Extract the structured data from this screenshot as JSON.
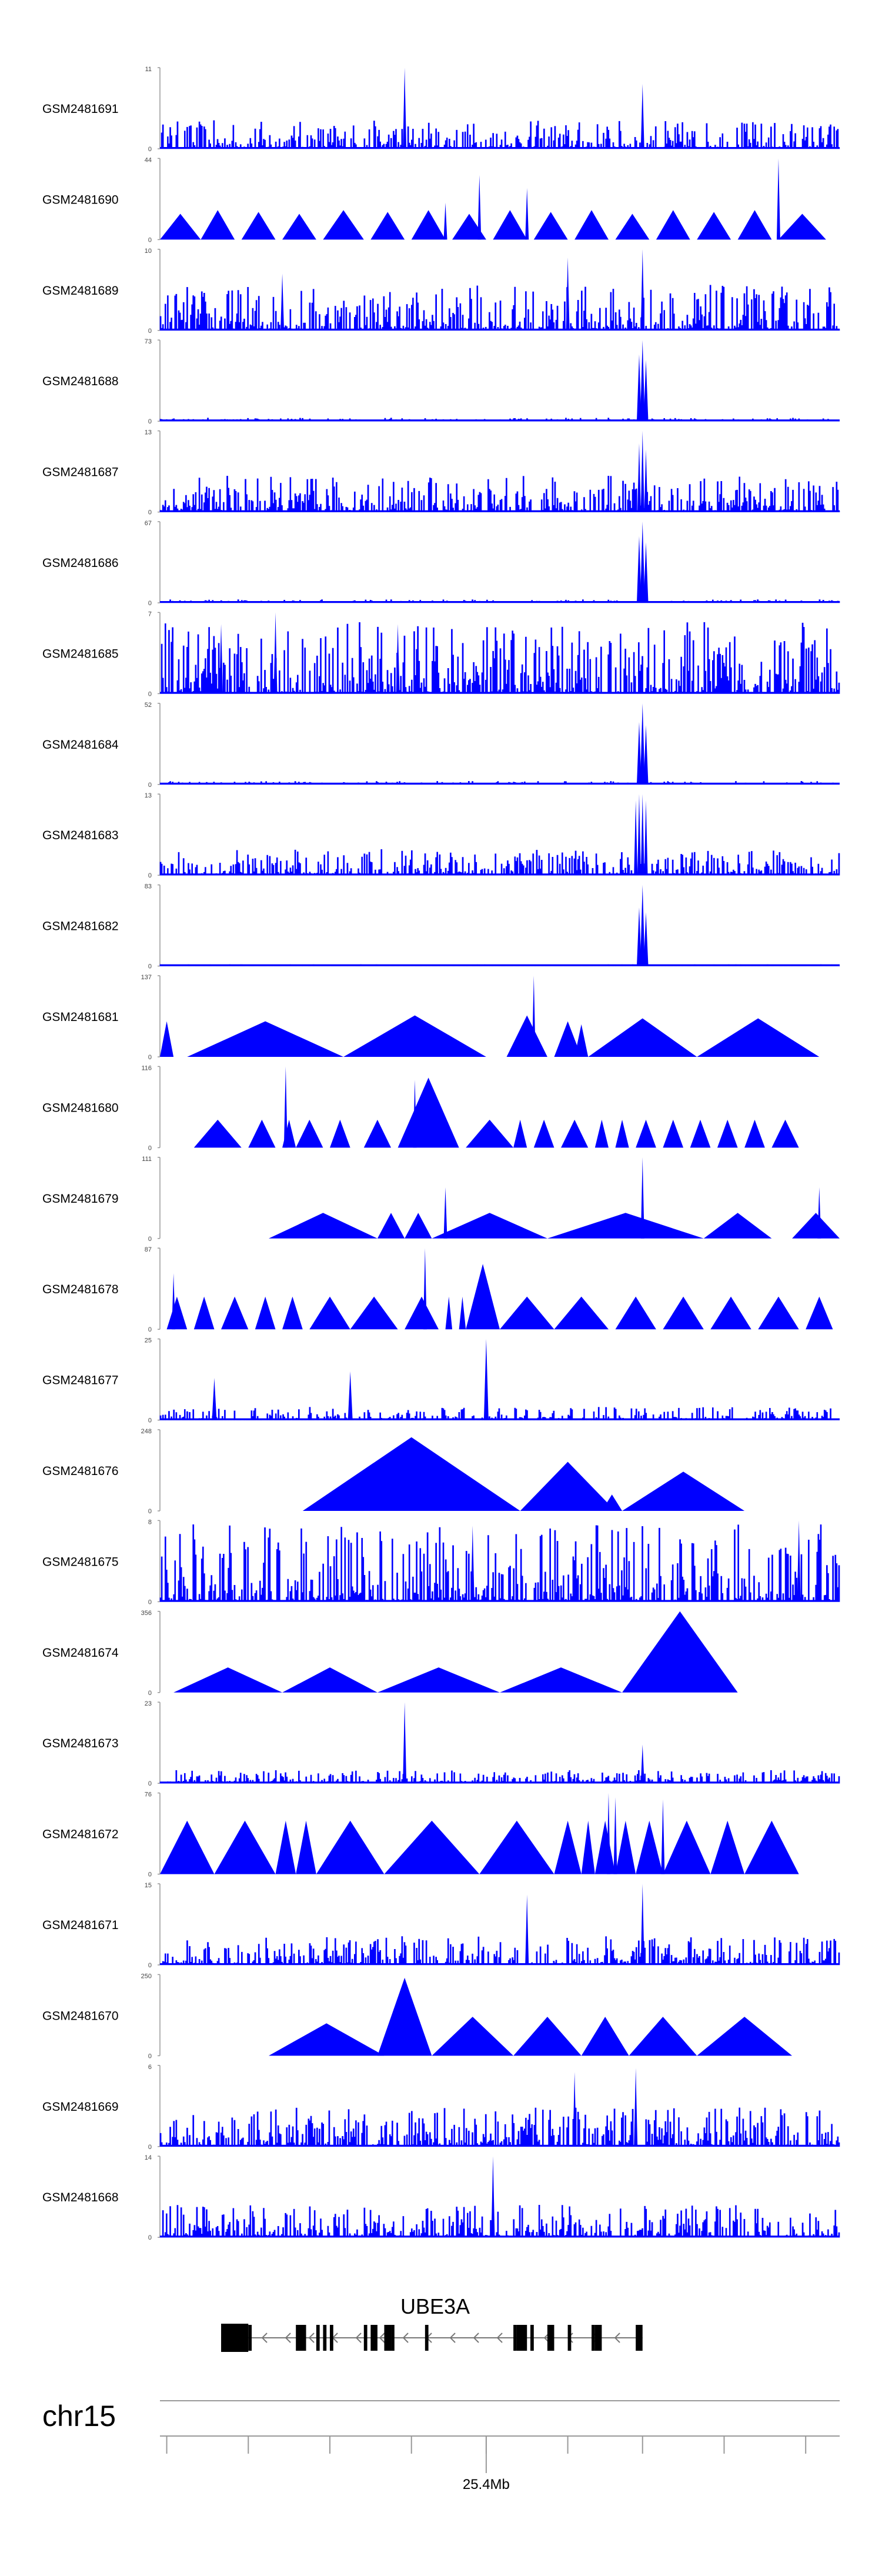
{
  "chart_data": {
    "type": "area",
    "title": "",
    "track_max_label_min": "0",
    "colors": {
      "track": "#0000ff",
      "axis": "#888888",
      "text": "#000000",
      "gene": "#000000"
    },
    "tracks": [
      {
        "name": "GSM2481691",
        "max": 11,
        "profile": "noise",
        "noise": 0.22,
        "peaks": [
          [
            0.36,
            11
          ],
          [
            0.71,
            8.8
          ]
        ]
      },
      {
        "name": "GSM2481690",
        "max": 44,
        "profile": "tri",
        "tri": [
          [
            0.0,
            0.06,
            14
          ],
          [
            0.06,
            0.11,
            16
          ],
          [
            0.12,
            0.17,
            15
          ],
          [
            0.18,
            0.23,
            14
          ],
          [
            0.24,
            0.3,
            16
          ],
          [
            0.31,
            0.36,
            15
          ],
          [
            0.37,
            0.42,
            16
          ],
          [
            0.43,
            0.48,
            14
          ],
          [
            0.49,
            0.54,
            16
          ],
          [
            0.55,
            0.6,
            15
          ],
          [
            0.61,
            0.66,
            16
          ],
          [
            0.67,
            0.72,
            14
          ],
          [
            0.73,
            0.78,
            16
          ],
          [
            0.79,
            0.84,
            15
          ],
          [
            0.85,
            0.9,
            16
          ],
          [
            0.91,
            0.98,
            14
          ]
        ],
        "peaks": [
          [
            0.47,
            35
          ],
          [
            0.54,
            28
          ],
          [
            0.91,
            44
          ],
          [
            0.42,
            20
          ]
        ]
      },
      {
        "name": "GSM2481689",
        "max": 10,
        "profile": "noise",
        "noise": 0.35,
        "peaks": [
          [
            0.71,
            10
          ],
          [
            0.6,
            9
          ],
          [
            0.18,
            7
          ]
        ]
      },
      {
        "name": "GSM2481688",
        "max": 73,
        "profile": "baseline",
        "noise": 0.02,
        "peaks": [
          [
            0.705,
            60
          ],
          [
            0.71,
            73
          ],
          [
            0.715,
            55
          ]
        ]
      },
      {
        "name": "GSM2481687",
        "max": 13,
        "profile": "noise",
        "noise": 0.28,
        "peaks": [
          [
            0.705,
            11
          ],
          [
            0.71,
            13
          ],
          [
            0.715,
            10
          ]
        ]
      },
      {
        "name": "GSM2481686",
        "max": 67,
        "profile": "baseline",
        "noise": 0.02,
        "peaks": [
          [
            0.705,
            55
          ],
          [
            0.71,
            67
          ],
          [
            0.715,
            50
          ]
        ]
      },
      {
        "name": "GSM2481685",
        "max": 7,
        "profile": "noise",
        "noise": 0.55,
        "peaks": [
          [
            0.17,
            7
          ],
          [
            0.09,
            6
          ],
          [
            0.35,
            6
          ]
        ]
      },
      {
        "name": "GSM2481684",
        "max": 52,
        "profile": "baseline",
        "noise": 0.02,
        "peaks": [
          [
            0.705,
            40
          ],
          [
            0.71,
            52
          ],
          [
            0.715,
            38
          ]
        ]
      },
      {
        "name": "GSM2481683",
        "max": 13,
        "profile": "noise",
        "noise": 0.2,
        "peaks": [
          [
            0.7,
            12
          ],
          [
            0.705,
            13
          ],
          [
            0.71,
            13
          ],
          [
            0.715,
            12
          ]
        ]
      },
      {
        "name": "GSM2481682",
        "max": 83,
        "profile": "baseline",
        "noise": 0.01,
        "peaks": [
          [
            0.705,
            60
          ],
          [
            0.71,
            83
          ],
          [
            0.715,
            55
          ]
        ]
      },
      {
        "name": "GSM2481681",
        "max": 137,
        "profile": "tri",
        "tri": [
          [
            0.0,
            0.02,
            60
          ],
          [
            0.04,
            0.27,
            60
          ],
          [
            0.27,
            0.48,
            70
          ],
          [
            0.51,
            0.57,
            70
          ],
          [
            0.58,
            0.62,
            60
          ],
          [
            0.61,
            0.63,
            55
          ],
          [
            0.63,
            0.79,
            65
          ],
          [
            0.79,
            0.97,
            65
          ]
        ],
        "peaks": [
          [
            0.55,
            137
          ]
        ]
      },
      {
        "name": "GSM2481680",
        "max": 116,
        "profile": "tri",
        "tri": [
          [
            0.05,
            0.12,
            40
          ],
          [
            0.13,
            0.17,
            40
          ],
          [
            0.18,
            0.2,
            40
          ],
          [
            0.2,
            0.24,
            40
          ],
          [
            0.25,
            0.28,
            40
          ],
          [
            0.3,
            0.34,
            40
          ],
          [
            0.35,
            0.44,
            100
          ],
          [
            0.45,
            0.52,
            40
          ],
          [
            0.52,
            0.54,
            40
          ],
          [
            0.55,
            0.58,
            40
          ],
          [
            0.59,
            0.63,
            40
          ],
          [
            0.64,
            0.66,
            40
          ],
          [
            0.67,
            0.69,
            40
          ],
          [
            0.7,
            0.73,
            40
          ],
          [
            0.74,
            0.77,
            40
          ],
          [
            0.78,
            0.81,
            40
          ],
          [
            0.82,
            0.85,
            40
          ],
          [
            0.86,
            0.89,
            40
          ],
          [
            0.9,
            0.94,
            40
          ]
        ],
        "peaks": [
          [
            0.185,
            116
          ],
          [
            0.375,
            97
          ]
        ]
      },
      {
        "name": "GSM2481679",
        "max": 111,
        "profile": "tri",
        "tri": [
          [
            0.16,
            0.32,
            35
          ],
          [
            0.32,
            0.36,
            35
          ],
          [
            0.36,
            0.4,
            35
          ],
          [
            0.4,
            0.57,
            35
          ],
          [
            0.57,
            0.8,
            35
          ],
          [
            0.8,
            0.9,
            35
          ],
          [
            0.93,
            1.0,
            35
          ]
        ],
        "peaks": [
          [
            0.42,
            70
          ],
          [
            0.71,
            111
          ],
          [
            0.97,
            70
          ]
        ]
      },
      {
        "name": "GSM2481678",
        "max": 87,
        "profile": "tri",
        "tri": [
          [
            0.01,
            0.04,
            35
          ],
          [
            0.05,
            0.08,
            35
          ],
          [
            0.09,
            0.13,
            35
          ],
          [
            0.14,
            0.17,
            35
          ],
          [
            0.18,
            0.21,
            35
          ],
          [
            0.22,
            0.28,
            35
          ],
          [
            0.28,
            0.35,
            35
          ],
          [
            0.36,
            0.41,
            35
          ],
          [
            0.42,
            0.43,
            35
          ],
          [
            0.44,
            0.45,
            35
          ],
          [
            0.45,
            0.5,
            70
          ],
          [
            0.5,
            0.58,
            35
          ],
          [
            0.58,
            0.66,
            35
          ],
          [
            0.67,
            0.73,
            35
          ],
          [
            0.74,
            0.8,
            35
          ],
          [
            0.81,
            0.87,
            35
          ],
          [
            0.88,
            0.94,
            35
          ],
          [
            0.95,
            0.99,
            35
          ]
        ],
        "peaks": [
          [
            0.02,
            60
          ],
          [
            0.39,
            87
          ]
        ]
      },
      {
        "name": "GSM2481677",
        "max": 25,
        "profile": "baseline",
        "noise": 0.08,
        "peaks": [
          [
            0.08,
            13
          ],
          [
            0.28,
            15
          ],
          [
            0.48,
            25
          ]
        ]
      },
      {
        "name": "GSM2481676",
        "max": 248,
        "profile": "tri",
        "tri": [
          [
            0.21,
            0.53,
            225
          ],
          [
            0.53,
            0.67,
            150
          ],
          [
            0.65,
            0.68,
            50
          ],
          [
            0.68,
            0.86,
            120
          ]
        ],
        "peaks": []
      },
      {
        "name": "GSM2481675",
        "max": 8,
        "profile": "noise",
        "noise": 0.6,
        "peaks": [
          [
            0.94,
            8
          ],
          [
            0.46,
            7.5
          ]
        ]
      },
      {
        "name": "GSM2481674",
        "max": 356,
        "profile": "tri",
        "tri": [
          [
            0.02,
            0.18,
            110
          ],
          [
            0.18,
            0.32,
            110
          ],
          [
            0.32,
            0.5,
            110
          ],
          [
            0.5,
            0.68,
            110
          ],
          [
            0.68,
            0.85,
            356
          ]
        ],
        "peaks": []
      },
      {
        "name": "GSM2481673",
        "max": 23,
        "profile": "noise",
        "noise": 0.1,
        "peaks": [
          [
            0.36,
            23
          ],
          [
            0.71,
            11
          ]
        ]
      },
      {
        "name": "GSM2481672",
        "max": 76,
        "profile": "tri",
        "tri": [
          [
            0.0,
            0.08,
            50
          ],
          [
            0.08,
            0.17,
            50
          ],
          [
            0.17,
            0.2,
            50
          ],
          [
            0.2,
            0.23,
            50
          ],
          [
            0.23,
            0.33,
            50
          ],
          [
            0.33,
            0.47,
            50
          ],
          [
            0.47,
            0.58,
            50
          ],
          [
            0.58,
            0.62,
            50
          ],
          [
            0.62,
            0.64,
            50
          ],
          [
            0.64,
            0.67,
            50
          ],
          [
            0.67,
            0.7,
            50
          ],
          [
            0.7,
            0.74,
            50
          ],
          [
            0.74,
            0.81,
            50
          ],
          [
            0.81,
            0.86,
            50
          ],
          [
            0.86,
            0.94,
            50
          ]
        ],
        "peaks": [
          [
            0.66,
            76
          ],
          [
            0.67,
            72
          ],
          [
            0.74,
            70
          ]
        ]
      },
      {
        "name": "GSM2481671",
        "max": 15,
        "profile": "noise",
        "noise": 0.22,
        "peaks": [
          [
            0.71,
            15
          ],
          [
            0.54,
            13
          ]
        ]
      },
      {
        "name": "GSM2481670",
        "max": 250,
        "profile": "tri",
        "tri": [
          [
            0.16,
            0.33,
            100
          ],
          [
            0.32,
            0.4,
            240
          ],
          [
            0.4,
            0.52,
            120
          ],
          [
            0.52,
            0.62,
            120
          ],
          [
            0.62,
            0.69,
            120
          ],
          [
            0.69,
            0.79,
            120
          ],
          [
            0.79,
            0.93,
            120
          ]
        ],
        "peaks": []
      },
      {
        "name": "GSM2481669",
        "max": 6,
        "profile": "noise",
        "noise": 0.3,
        "peaks": [
          [
            0.61,
            5.5
          ],
          [
            0.7,
            5.8
          ]
        ]
      },
      {
        "name": "GSM2481668",
        "max": 14,
        "profile": "noise",
        "noise": 0.25,
        "peaks": [
          [
            0.49,
            14
          ]
        ]
      }
    ],
    "gene": {
      "name": "UBE3A",
      "start": 0.09,
      "end": 0.71,
      "exons": [
        [
          0.09,
          0.13
        ],
        [
          0.13,
          0.135
        ],
        [
          0.2,
          0.215
        ],
        [
          0.23,
          0.235
        ],
        [
          0.24,
          0.245
        ],
        [
          0.25,
          0.255
        ],
        [
          0.3,
          0.305
        ],
        [
          0.31,
          0.32
        ],
        [
          0.33,
          0.34
        ],
        [
          0.34,
          0.345
        ],
        [
          0.39,
          0.395
        ],
        [
          0.52,
          0.525
        ],
        [
          0.525,
          0.54
        ],
        [
          0.545,
          0.55
        ],
        [
          0.57,
          0.58
        ],
        [
          0.6,
          0.605
        ],
        [
          0.635,
          0.64
        ],
        [
          0.64,
          0.65
        ],
        [
          0.7,
          0.71
        ]
      ]
    },
    "xaxis": {
      "chromosome": "chr15",
      "label": "25.4Mb",
      "label_pos": 0.48,
      "ticks": [
        0.01,
        0.13,
        0.25,
        0.37,
        0.48,
        0.6,
        0.71,
        0.83,
        0.95
      ]
    }
  }
}
